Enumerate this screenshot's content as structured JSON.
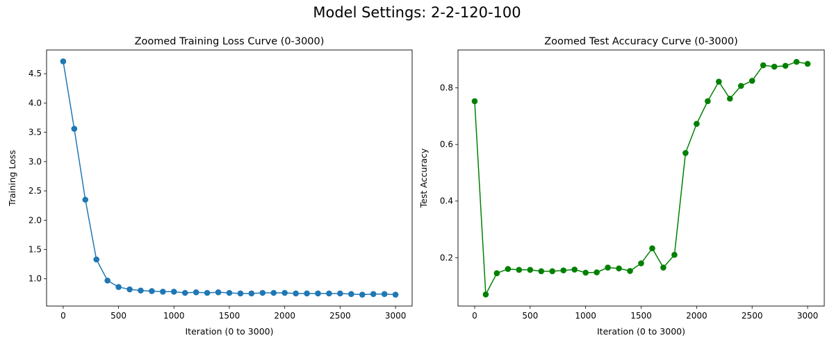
{
  "figure": {
    "suptitle": "Model Settings: 2-2-120-100"
  },
  "chart_data": [
    {
      "type": "line",
      "title": "Zoomed Training Loss Curve (0-3000)",
      "xlabel": "Iteration (0 to 3000)",
      "ylabel": "Training Loss",
      "xlim": [
        -150,
        3150
      ],
      "ylim": [
        0.535,
        4.905
      ],
      "xticks": [
        0,
        500,
        1000,
        1500,
        2000,
        2500,
        3000
      ],
      "yticks": [
        1.0,
        1.5,
        2.0,
        2.5,
        3.0,
        3.5,
        4.0,
        4.5
      ],
      "ytick_labels": [
        "1.0",
        "1.5",
        "2.0",
        "2.5",
        "3.0",
        "3.5",
        "4.0",
        "4.5"
      ],
      "grid": false,
      "series": [
        {
          "color": "#1f77b4",
          "marker": "circle",
          "x": [
            0,
            100,
            200,
            300,
            400,
            500,
            600,
            700,
            800,
            900,
            1000,
            1100,
            1200,
            1300,
            1400,
            1500,
            1600,
            1700,
            1800,
            1900,
            2000,
            2100,
            2200,
            2300,
            2400,
            2500,
            2600,
            2700,
            2800,
            2900,
            3000
          ],
          "y": [
            4.71,
            3.56,
            2.35,
            1.33,
            0.97,
            0.86,
            0.82,
            0.8,
            0.79,
            0.78,
            0.78,
            0.76,
            0.77,
            0.76,
            0.77,
            0.76,
            0.75,
            0.75,
            0.76,
            0.76,
            0.76,
            0.75,
            0.75,
            0.75,
            0.75,
            0.75,
            0.74,
            0.73,
            0.74,
            0.74,
            0.73
          ]
        }
      ]
    },
    {
      "type": "line",
      "title": "Zoomed Test Accuracy Curve (0-3000)",
      "xlabel": "Iteration (0 to 3000)",
      "ylabel": "Test Accuracy",
      "xlim": [
        -150,
        3150
      ],
      "ylim": [
        0.029,
        0.934
      ],
      "xticks": [
        0,
        500,
        1000,
        1500,
        2000,
        2500,
        3000
      ],
      "yticks": [
        0.2,
        0.4,
        0.6,
        0.8
      ],
      "ytick_labels": [
        "0.2",
        "0.4",
        "0.6",
        "0.8"
      ],
      "grid": false,
      "series": [
        {
          "color": "#008000",
          "marker": "circle",
          "x": [
            0,
            100,
            200,
            300,
            400,
            500,
            600,
            700,
            800,
            900,
            1000,
            1100,
            1200,
            1300,
            1400,
            1500,
            1600,
            1700,
            1800,
            1900,
            2000,
            2100,
            2200,
            2300,
            2400,
            2500,
            2600,
            2700,
            2800,
            2900,
            3000
          ],
          "y": [
            0.753,
            0.07,
            0.145,
            0.16,
            0.157,
            0.157,
            0.152,
            0.152,
            0.155,
            0.158,
            0.147,
            0.148,
            0.165,
            0.162,
            0.153,
            0.18,
            0.233,
            0.165,
            0.21,
            0.57,
            0.673,
            0.753,
            0.822,
            0.762,
            0.807,
            0.825,
            0.88,
            0.875,
            0.878,
            0.892,
            0.885
          ]
        }
      ]
    }
  ]
}
